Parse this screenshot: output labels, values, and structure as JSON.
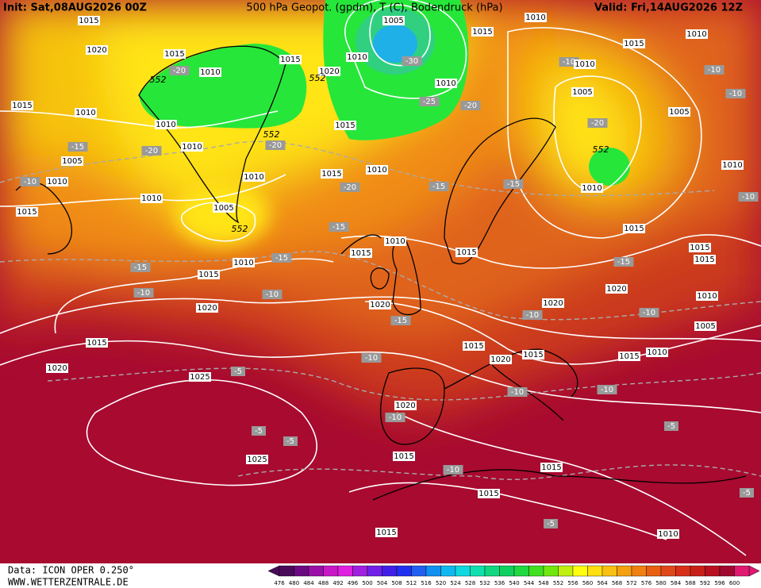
{
  "header": {
    "init": "Init: Sat,08AUG2026 00Z",
    "title": "500 hPa Geopot. (gpdm), T (C), Bodendruck (hPa)",
    "valid": "Valid: Fri,14AUG2026 12Z"
  },
  "footer": {
    "source": "Data: ICON OPER 0.250°",
    "website": "WWW.WETTERZENTRALE.DE"
  },
  "colorbar": {
    "values": [
      476,
      480,
      484,
      488,
      492,
      496,
      500,
      504,
      508,
      512,
      516,
      520,
      524,
      528,
      532,
      536,
      540,
      544,
      548,
      552,
      556,
      560,
      564,
      568,
      572,
      576,
      580,
      584,
      588,
      592,
      596,
      600
    ],
    "colors": [
      "#4a0a5a",
      "#6a0a80",
      "#9a10a8",
      "#c818c8",
      "#e020e0",
      "#a020e0",
      "#7020e8",
      "#4020e8",
      "#2030f0",
      "#2060f0",
      "#1090f0",
      "#10b8f0",
      "#10d8e0",
      "#10e0b0",
      "#10d880",
      "#10d060",
      "#20d840",
      "#40e020",
      "#70e810",
      "#c0f010",
      "#ffff10",
      "#ffe010",
      "#f8c010",
      "#f4a010",
      "#f08010",
      "#e86010",
      "#e04818",
      "#d83018",
      "#c82018",
      "#b81020",
      "#a00830",
      "#e01870"
    ]
  },
  "isobar_labels": [
    "1015",
    "1020",
    "1015",
    "1010",
    "1015",
    "1020",
    "1005",
    "1010",
    "1010",
    "1015",
    "1010",
    "1010",
    "1015",
    "1010",
    "1005",
    "1005",
    "1015",
    "1010",
    "1010",
    "1010",
    "1005",
    "1010",
    "1015",
    "1010",
    "1015",
    "1010",
    "1010",
    "1005",
    "1015",
    "1010",
    "1010",
    "1015",
    "1010",
    "1015",
    "1015",
    "1015",
    "1015",
    "1010",
    "1015",
    "1020",
    "1010",
    "1020",
    "1020",
    "1020",
    "1005",
    "1015",
    "1015",
    "1015",
    "1020",
    "1015",
    "1010",
    "1020",
    "1025",
    "1020",
    "1015",
    "1025",
    "1015",
    "1015",
    "1015",
    "1010"
  ],
  "temperature_labels": [
    "-15",
    "-20",
    "-15",
    "-20",
    "-10",
    "-20",
    "-20",
    "-15",
    "-15",
    "-20",
    "-10",
    "-10",
    "-10",
    "-15",
    "-10",
    "-15",
    "-15",
    "-10",
    "-15",
    "-10",
    "-10",
    "-10",
    "-5",
    "-10",
    "-10",
    "-10",
    "-5",
    "-5",
    "-10",
    "-5",
    "-5",
    "-5",
    "-30",
    "-25",
    "-20",
    "-10",
    "-15"
  ],
  "height_labels": [
    "552",
    "552",
    "552",
    "552",
    "552"
  ]
}
